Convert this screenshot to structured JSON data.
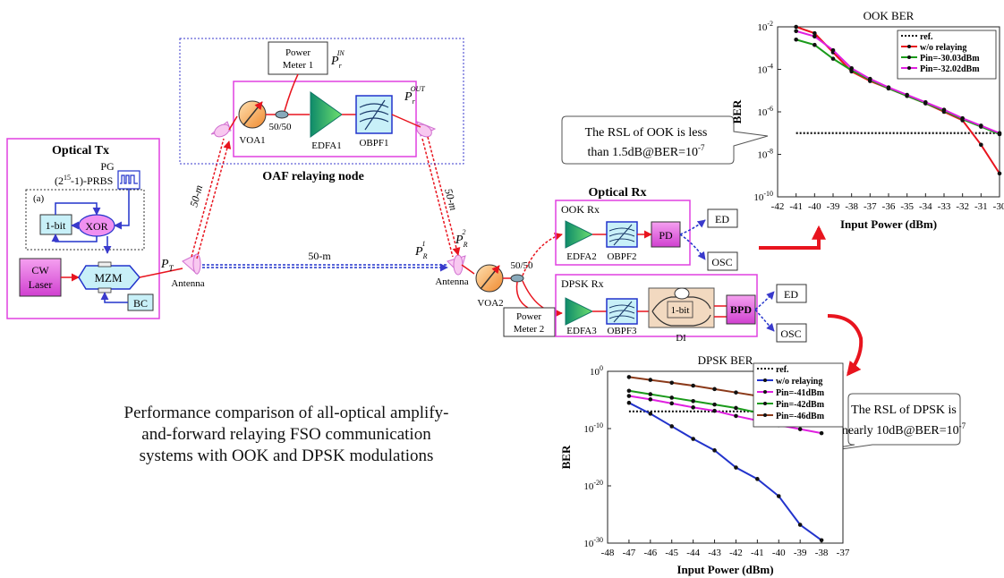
{
  "labels": {
    "optical_tx": "Optical Tx",
    "pg": "PG",
    "prbs": "(2",
    "prbs_exp": "15",
    "prbs_tail": "-1)-PRBS",
    "sub_a": "(a)",
    "one_bit": "1-bit",
    "xor": "XOR",
    "cw_laser_1": "CW",
    "cw_laser_2": "Laser",
    "mzm": "MZM",
    "bc": "BC",
    "pt": "P",
    "pt_sub": "T",
    "antenna_tx": "Antenna",
    "link_direct": "50-m",
    "link_up": "50-m",
    "link_down": "50-m",
    "power_meter_1_a": "Power",
    "power_meter_1_b": "Meter 1",
    "pr_in": "P",
    "pr_in_sub": "r",
    "pr_in_sup": "IN",
    "voa1": "VOA1",
    "split1": "50/50",
    "edfa1": "EDFA1",
    "obpf1": "OBPF1",
    "pr_out": "P",
    "pr_out_sub": "r",
    "pr_out_sup": "OUT",
    "oaf_node": "OAF relaying node",
    "pr1": "P",
    "pr1_sub": "R",
    "pr1_sup": "1",
    "pr2": "P",
    "pr2_sub": "R",
    "pr2_sup": "2",
    "antenna_rx": "Antenna",
    "voa2": "VOA2",
    "split2": "50/50",
    "power_meter_2_a": "Power",
    "power_meter_2_b": "Meter 2",
    "optical_rx": "Optical Rx",
    "ook_rx": "OOK Rx",
    "edfa2": "EDFA2",
    "obpf2": "OBPF2",
    "pd": "PD",
    "ed1": "ED",
    "osc1": "OSC",
    "dpsk_rx": "DPSK Rx",
    "edfa3": "EDFA3",
    "obpf3": "OBPF3",
    "di": "DI",
    "di_inner": "1-bit",
    "bpd": "BPD",
    "ed2": "ED",
    "osc2": "OSC",
    "callout_ook_1": "The RSL of OOK is less",
    "callout_ook_2": "than 1.5dB@BER=10",
    "callout_ook_exp": "-7",
    "callout_dpsk_1": "The RSL of DPSK is",
    "callout_dpsk_2": "nearly 10dB@BER=10",
    "callout_dpsk_exp": "-7",
    "caption": [
      "Performance comparison of all-optical amplify-",
      "and-forward relaying FSO communication",
      "systems with OOK and DPSK modulations"
    ]
  },
  "colors": {
    "magenta_frame": "#e040e0",
    "blue_frame": "#3a3acc",
    "red": "#e8141e",
    "blue": "#2233cc",
    "green": "#1a9a1a",
    "magenta": "#e020e0",
    "brown": "#8b3a1a",
    "box_fill": "#e060e0",
    "cyan_fill": "#c8f0f8"
  },
  "chart_data": [
    {
      "id": "ook",
      "type": "line",
      "title": "OOK BER",
      "xlabel": "Input Power (dBm)",
      "ylabel": "BER",
      "xlim": [
        -42,
        -30
      ],
      "xticks": [
        -42,
        -41,
        -40,
        -39,
        -38,
        -37,
        -36,
        -35,
        -34,
        -33,
        -32,
        -31,
        -30
      ],
      "ylim_exp": [
        -10,
        -2
      ],
      "yticks_exp": [
        -10,
        -8,
        -6,
        -4,
        -2
      ],
      "log_y": true,
      "legend_position": "top-right",
      "series": [
        {
          "name": "ref.",
          "style": "dotted",
          "color": "#111111",
          "x": [
            -41,
            -30
          ],
          "y_exp": [
            -7,
            -7
          ]
        },
        {
          "name": "w/o relaying",
          "color": "#e8141e",
          "x": [
            -41,
            -40,
            -39,
            -38,
            -37,
            -36,
            -35,
            -34,
            -33,
            -32,
            -31,
            -30
          ],
          "y_exp": [
            -2.0,
            -2.3,
            -3.2,
            -4.1,
            -4.55,
            -4.9,
            -5.25,
            -5.6,
            -6.0,
            -6.4,
            -7.55,
            -8.9
          ]
        },
        {
          "name": "Pin=-30.03dBm",
          "color": "#1a9a1a",
          "x": [
            -41,
            -40,
            -39,
            -38,
            -37,
            -36,
            -35,
            -34,
            -33,
            -32,
            -31,
            -30
          ],
          "y_exp": [
            -2.6,
            -2.85,
            -3.5,
            -4.05,
            -4.5,
            -4.9,
            -5.25,
            -5.6,
            -5.95,
            -6.35,
            -6.7,
            -7.05
          ]
        },
        {
          "name": "Pin=-32.02dBm",
          "color": "#e020e0",
          "x": [
            -41,
            -40,
            -39,
            -38,
            -37,
            -36,
            -35,
            -34,
            -33,
            -32,
            -31,
            -30
          ],
          "y_exp": [
            -2.2,
            -2.45,
            -3.1,
            -3.95,
            -4.45,
            -4.85,
            -5.2,
            -5.55,
            -5.9,
            -6.3,
            -6.65,
            -7.0
          ]
        }
      ]
    },
    {
      "id": "dpsk",
      "type": "line",
      "title": "DPSK BER",
      "xlabel": "Input Power (dBm)",
      "ylabel": "BER",
      "xlim": [
        -48,
        -37
      ],
      "xticks": [
        -48,
        -47,
        -46,
        -45,
        -44,
        -43,
        -42,
        -41,
        -40,
        -39,
        -38,
        -37
      ],
      "ylim_exp": [
        -30,
        0
      ],
      "yticks_exp": [
        -30,
        -20,
        -10,
        0
      ],
      "log_y": true,
      "legend_position": "top-right",
      "series": [
        {
          "name": "ref.",
          "style": "dotted",
          "color": "#111111",
          "x": [
            -47,
            -38
          ],
          "y_exp": [
            -7,
            -7
          ]
        },
        {
          "name": "w/o relaying",
          "color": "#2233cc",
          "x": [
            -47,
            -46,
            -45,
            -44,
            -43,
            -42,
            -41,
            -40,
            -39,
            -38
          ],
          "y_exp": [
            -5.5,
            -7.4,
            -9.6,
            -11.8,
            -13.8,
            -16.8,
            -18.8,
            -21.8,
            -26.8,
            -29.5
          ]
        },
        {
          "name": "Pin=-41dBm",
          "color": "#e020e0",
          "x": [
            -47,
            -46,
            -45,
            -44,
            -43,
            -42,
            -41,
            -40,
            -39,
            -38
          ],
          "y_exp": [
            -4.3,
            -4.9,
            -5.6,
            -6.3,
            -6.9,
            -7.8,
            -8.6,
            -9.4,
            -10.1,
            -10.8
          ]
        },
        {
          "name": "Pin=-42dBm",
          "color": "#1a9a1a",
          "x": [
            -47,
            -46,
            -45,
            -44,
            -43,
            -42,
            -41,
            -40,
            -39,
            -38
          ],
          "y_exp": [
            -3.4,
            -4.0,
            -4.6,
            -5.2,
            -5.8,
            -6.4,
            -7.2,
            -7.8,
            -8.3,
            -8.8
          ]
        },
        {
          "name": "Pin=-46dBm",
          "color": "#8b3a1a",
          "x": [
            -47,
            -46,
            -45,
            -44,
            -43,
            -42,
            -41,
            -40,
            -39,
            -38
          ],
          "y_exp": [
            -1.0,
            -1.5,
            -2.0,
            -2.5,
            -3.1,
            -3.7,
            -4.3,
            -4.8,
            -5.2,
            -5.6
          ]
        }
      ]
    }
  ]
}
